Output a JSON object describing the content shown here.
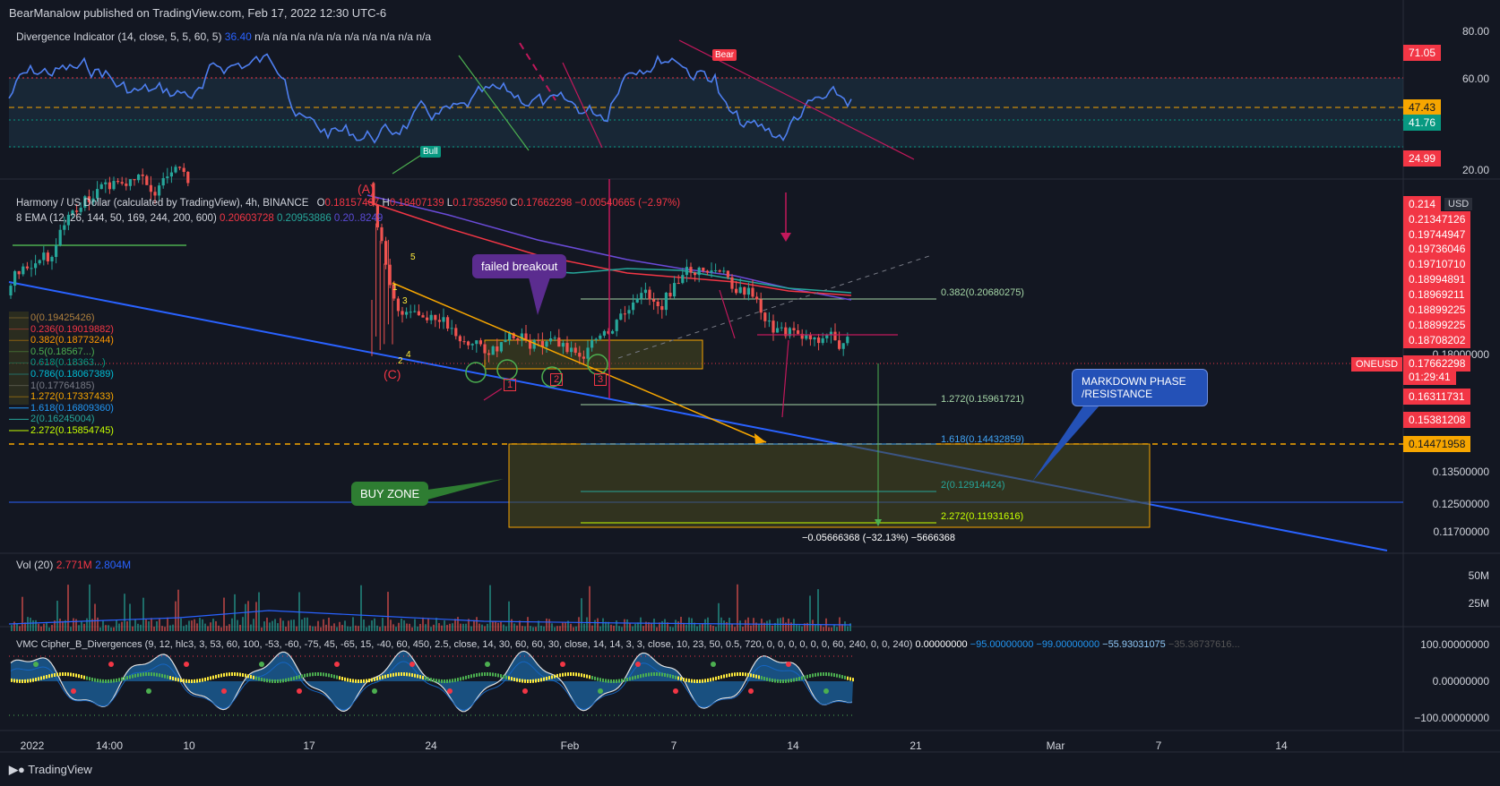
{
  "header": {
    "publisher": "BearManalow published on TradingView.com, Feb 17, 2022 12:30 UTC-6"
  },
  "footer": {
    "brand": "TradingView"
  },
  "div_indicator": {
    "title": "Divergence Indicator (14, close, 5, 5, 60, 5)",
    "value": "36.40",
    "na": "n/a n/a n/a n/a n/a n/a n/a n/a n/a n/a",
    "axis": [
      "80.00",
      "60.00",
      "20.00"
    ],
    "tags": [
      {
        "v": "71.05",
        "c": "#f23645"
      },
      {
        "v": "47.43",
        "c": "#f7a600"
      },
      {
        "v": "41.76",
        "c": "#089981"
      },
      {
        "v": "24.99",
        "c": "#f23645"
      }
    ],
    "bull": "Bull",
    "bear": "Bear"
  },
  "main": {
    "symbol": "Harmony / US Dollar (calculated by TradingView), 4h, BINANCE",
    "o_label": "O",
    "o": "0.18157467",
    "h_label": "H",
    "h": "0.18407139",
    "l_label": "L",
    "l": "0.17352950",
    "c_label": "C",
    "c": "0.17662298",
    "chg": "−0.00540665 (−2.97%)",
    "ema_title": "8 EMA (12, 26, 144, 50, 169, 244, 200, 600)",
    "ema_v1": "0.20603728",
    "ema_v2": "0.20953886",
    "ema_v3": "0.20..8249",
    "currency": "USD",
    "price_tags": [
      {
        "v": "0.214",
        "c": "#f23645"
      },
      {
        "v": "0.21347126",
        "c": "#f23645"
      },
      {
        "v": "0.19744947",
        "c": "#f23645"
      },
      {
        "v": "0.19736046",
        "c": "#f23645"
      },
      {
        "v": "0.19710710",
        "c": "#f23645"
      },
      {
        "v": "0.18994891",
        "c": "#f23645"
      },
      {
        "v": "0.18969211",
        "c": "#f23645"
      },
      {
        "v": "0.18899225",
        "c": "#f23645"
      },
      {
        "v": "0.18899225",
        "c": "#f23645"
      },
      {
        "v": "0.18708202",
        "c": "#f23645"
      },
      {
        "v": "0.17662298",
        "c": "#f23645"
      },
      {
        "v": "01:29:41",
        "c": "#f23645"
      },
      {
        "v": "0.16311731",
        "c": "#f23645"
      },
      {
        "v": "0.15381208",
        "c": "#f23645"
      },
      {
        "v": "0.14471958",
        "c": "#f7a600"
      }
    ],
    "axis": [
      "0.18000000",
      "0.13500000",
      "0.12500000",
      "0.11700000"
    ],
    "symbol_tag": "ONEUSD",
    "fib_left": [
      "0(0.19425426)",
      "0.236(0.19019882)",
      "0.382(0.18773244)",
      "0.5(0.18567...)",
      "0.618(0.18363...)",
      "0.786(0.18067389)",
      "1(0.17764185)",
      "1.272(0.17337433)",
      "1.618(0.16809360)",
      "2(0.16245004)",
      "2.272(0.15854745)"
    ],
    "fib_right": [
      "0.382(0.20680275)",
      "1.272(0.15961721)",
      "1.618(0.14432859)",
      "2(0.12914424)",
      "2.272(0.11931616)"
    ],
    "measure": "−0.05666368 (−32.13%) −5666368",
    "failed_breakout": "failed breakout",
    "buy_zone": "BUY ZONE",
    "markdown": "MARKDOWN PHASE\n/RESISTANCE",
    "wave_a": "(A)",
    "wave_c": "(C)",
    "waves": [
      "5",
      "1",
      "3",
      "2",
      "4"
    ],
    "circles": [
      "1",
      "2",
      "3"
    ]
  },
  "volume": {
    "title": "Vol (20)",
    "v1": "2.771M",
    "v2": "2.804M",
    "axis": [
      "50M",
      "25M"
    ]
  },
  "vmc": {
    "title": "VMC Cipher_B_Divergences (9, 12, hlc3, 3, 53, 60, 100, -53, -60, -75, 45, -65, 15, -40, 60, 450, 2.5, close, 14, 30, 60, 60, 30, close, 14, 14, 3, 3, close, 10, 23, 50, 0.5, 720, 0, 0, 0, 0, 0, 0, 60, 240, 0, 0, 240)",
    "v0": "0.00000000",
    "v1": "−95.00000000",
    "v2": "−99.00000000",
    "v3": "−55.93031075",
    "v4": "−35.36737616...",
    "axis": [
      "100.00000000",
      "0.00000000",
      "−100.00000000"
    ]
  },
  "time_axis": [
    "2022",
    "14:00",
    "10",
    "17",
    "24",
    "Feb",
    "7",
    "14",
    "21",
    "Mar",
    "7",
    "14"
  ]
}
